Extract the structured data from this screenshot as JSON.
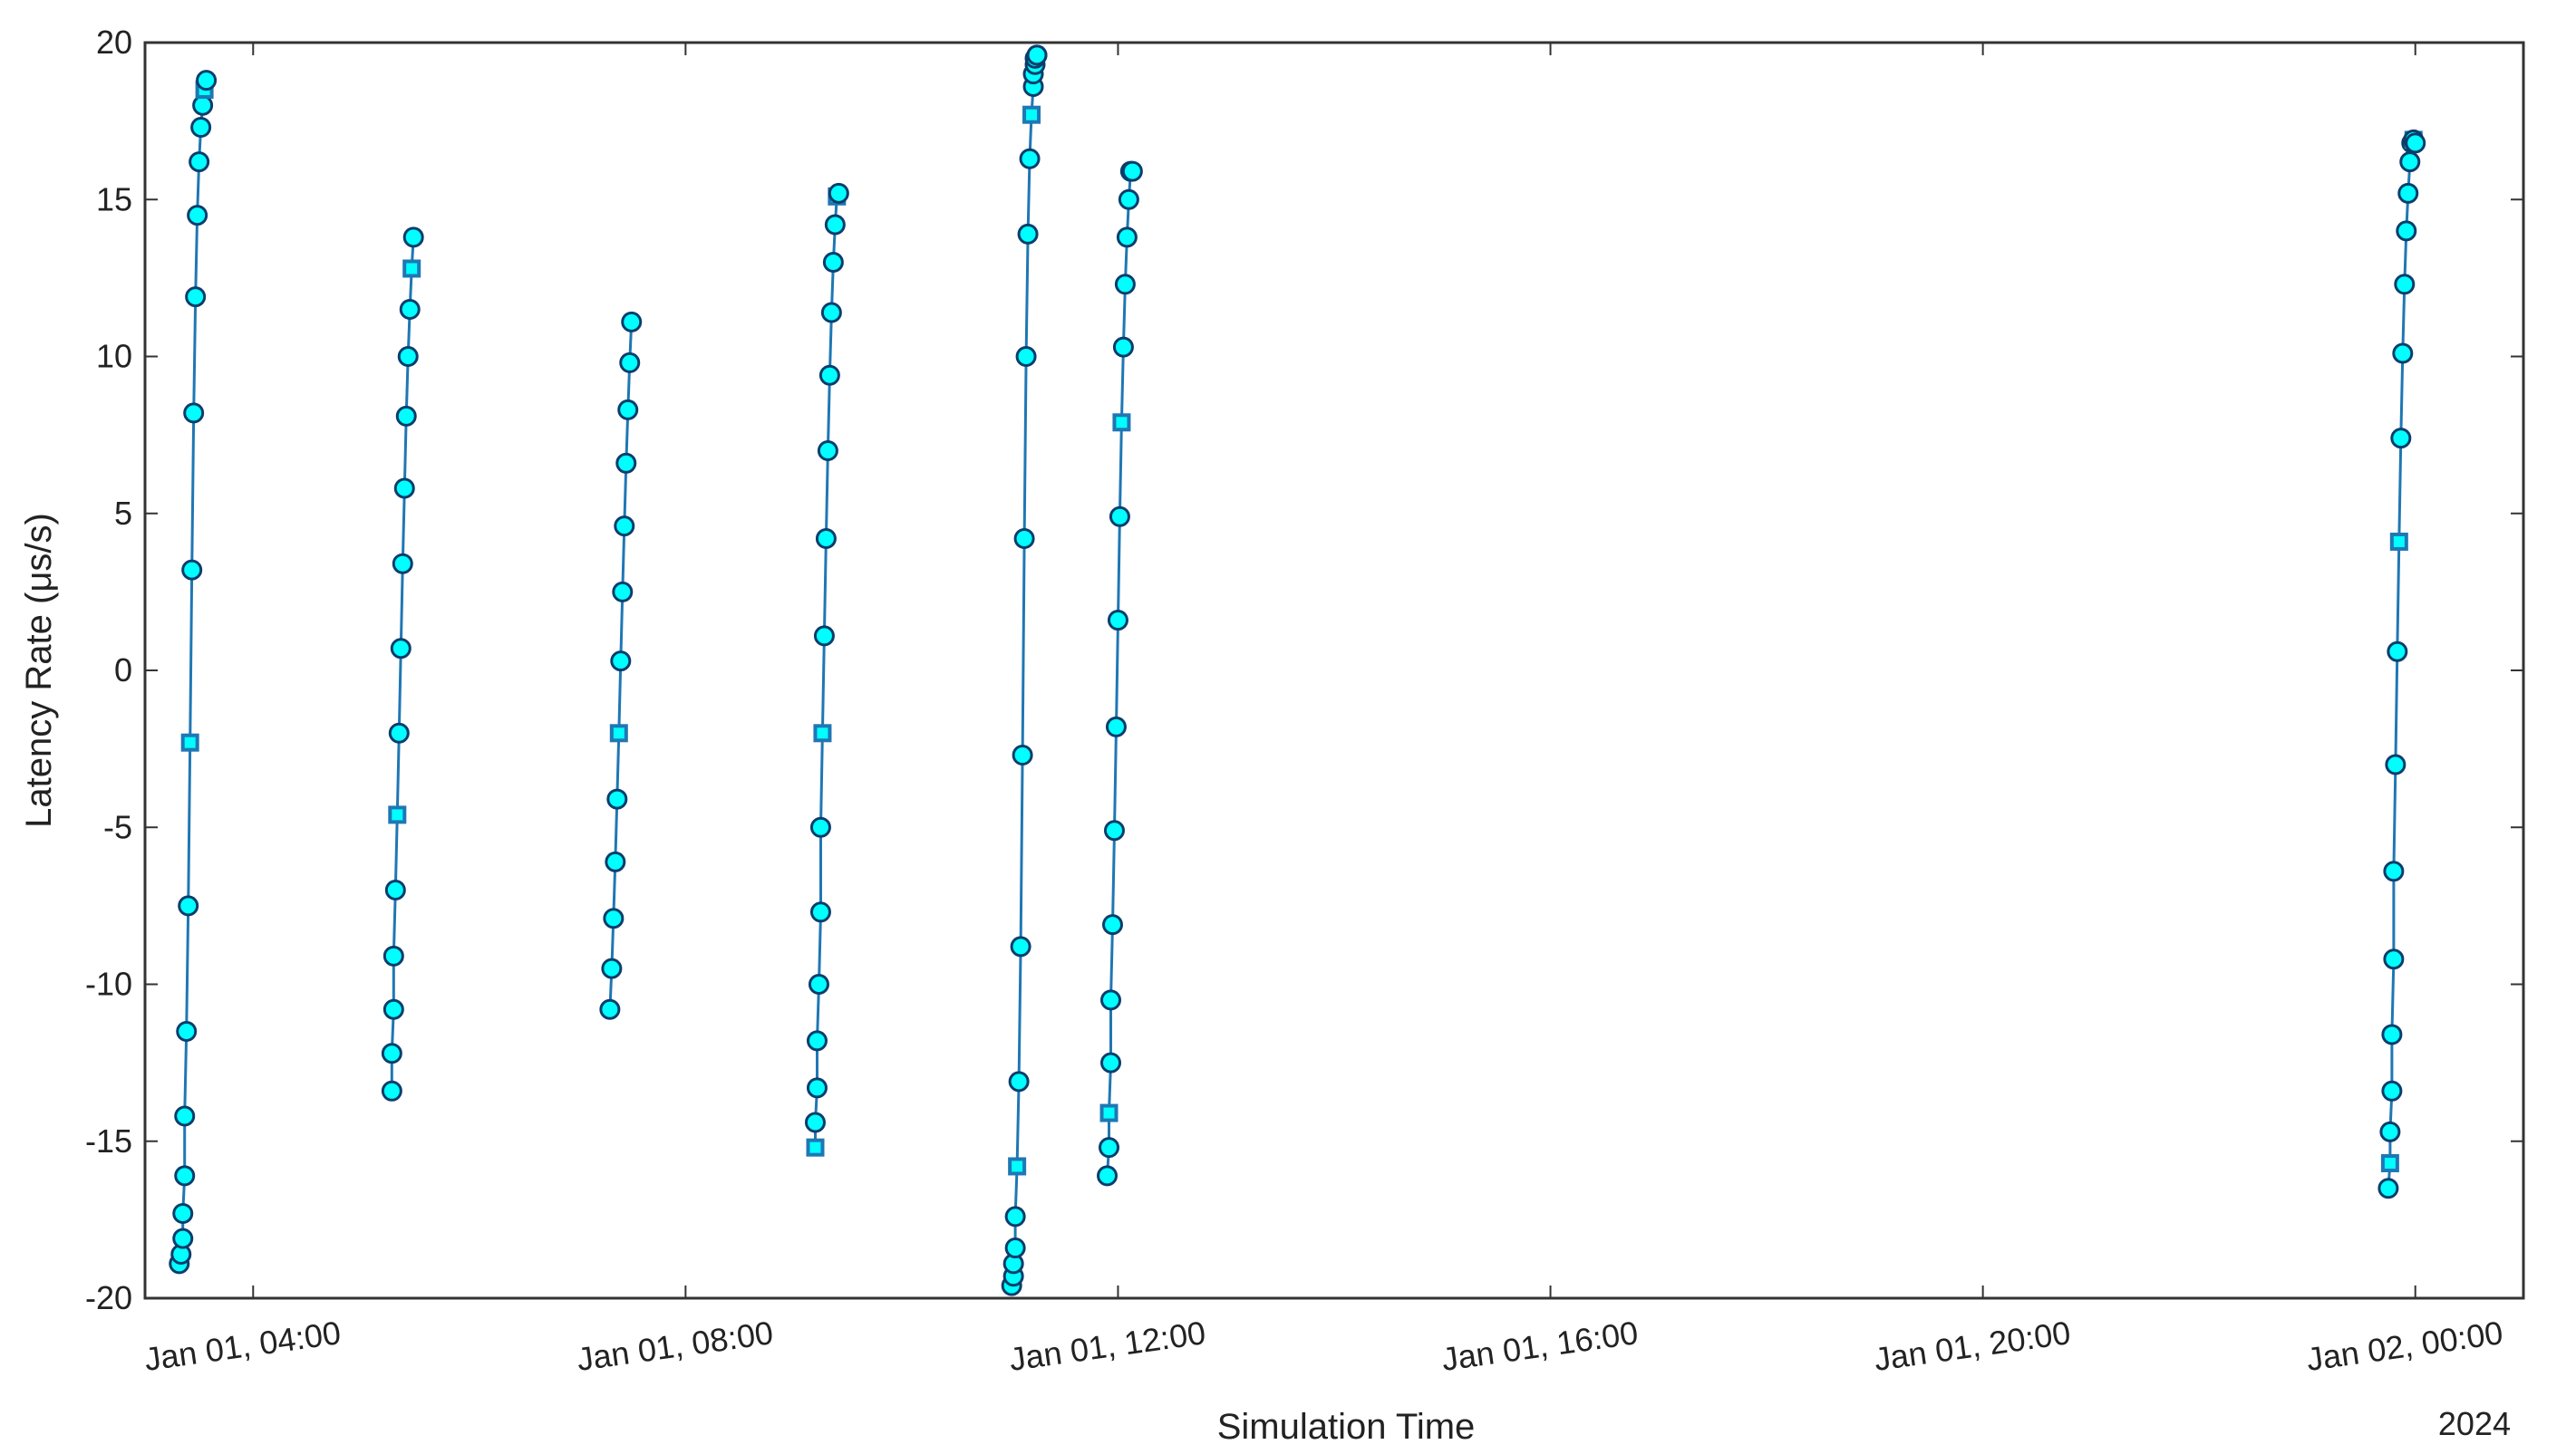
{
  "chart_data": {
    "type": "line",
    "xlabel": "Simulation Time",
    "ylabel": "Latency Rate (μs/s)",
    "year_label": "2024",
    "xlim": [
      "2024-01-01T03:00",
      "2024-01-02T01:00"
    ],
    "ylim": [
      -20,
      20
    ],
    "x_ticks": [
      "2024-01-01T04:00",
      "2024-01-01T08:00",
      "2024-01-01T12:00",
      "2024-01-01T16:00",
      "2024-01-01T20:00",
      "2024-01-02T00:00"
    ],
    "x_tick_labels": [
      "Jan 01, 04:00",
      "Jan 01, 08:00",
      "Jan 01, 12:00",
      "Jan 01, 16:00",
      "Jan 01, 20:00",
      "Jan 02, 00:00"
    ],
    "y_ticks": [
      20,
      15,
      10,
      5,
      0,
      -5,
      -10,
      -15,
      -20
    ],
    "y_tick_labels": [
      "20",
      "15",
      "10",
      "5",
      "0",
      "-5",
      "-10",
      "-15",
      "-20"
    ],
    "grid": false,
    "colors": {
      "line": "#1f77b4",
      "marker_fill": "#00ffff",
      "marker_edge": "#0b3d6b",
      "axis": "#333333"
    },
    "series": [
      {
        "x": [
          "2024-01-01T03:19",
          "2024-01-01T03:20",
          "2024-01-01T03:21",
          "2024-01-01T03:21",
          "2024-01-01T03:22",
          "2024-01-01T03:22",
          "2024-01-01T03:23",
          "2024-01-01T03:24",
          "2024-01-01T03:25",
          "2024-01-01T03:26",
          "2024-01-01T03:27",
          "2024-01-01T03:28",
          "2024-01-01T03:29",
          "2024-01-01T03:30",
          "2024-01-01T03:31",
          "2024-01-01T03:32",
          "2024-01-01T03:33",
          "2024-01-01T03:34"
        ],
        "y": [
          -18.9,
          -18.6,
          -18.1,
          -17.3,
          -16.1,
          -14.2,
          -11.5,
          -7.5,
          -2.3,
          3.2,
          8.2,
          11.9,
          14.5,
          16.2,
          17.3,
          18.0,
          18.5,
          18.8
        ]
      },
      {
        "x": [
          "2024-01-01T05:17",
          "2024-01-01T05:17",
          "2024-01-01T05:18",
          "2024-01-01T05:18",
          "2024-01-01T05:19",
          "2024-01-01T05:20",
          "2024-01-01T05:21",
          "2024-01-01T05:22",
          "2024-01-01T05:23",
          "2024-01-01T05:24",
          "2024-01-01T05:25",
          "2024-01-01T05:26",
          "2024-01-01T05:27",
          "2024-01-01T05:28",
          "2024-01-01T05:29"
        ],
        "y": [
          -13.4,
          -12.2,
          -10.8,
          -9.1,
          -7.0,
          -4.6,
          -2.0,
          0.7,
          3.4,
          5.8,
          8.1,
          10.0,
          11.5,
          12.8,
          13.8
        ]
      },
      {
        "x": [
          "2024-01-01T07:18",
          "2024-01-01T07:19",
          "2024-01-01T07:20",
          "2024-01-01T07:21",
          "2024-01-01T07:22",
          "2024-01-01T07:23",
          "2024-01-01T07:24",
          "2024-01-01T07:25",
          "2024-01-01T07:26",
          "2024-01-01T07:27",
          "2024-01-01T07:28",
          "2024-01-01T07:29",
          "2024-01-01T07:30"
        ],
        "y": [
          -10.8,
          -9.5,
          -7.9,
          -6.1,
          -4.1,
          -2.0,
          0.3,
          2.5,
          4.6,
          6.6,
          8.3,
          9.8,
          11.1
        ]
      },
      {
        "x": [
          "2024-01-01T09:12",
          "2024-01-01T09:12",
          "2024-01-01T09:13",
          "2024-01-01T09:13",
          "2024-01-01T09:14",
          "2024-01-01T09:15",
          "2024-01-01T09:15",
          "2024-01-01T09:16",
          "2024-01-01T09:17",
          "2024-01-01T09:18",
          "2024-01-01T09:19",
          "2024-01-01T09:20",
          "2024-01-01T09:21",
          "2024-01-01T09:22",
          "2024-01-01T09:23",
          "2024-01-01T09:24",
          "2024-01-01T09:25"
        ],
        "y": [
          -15.2,
          -14.4,
          -13.3,
          -11.8,
          -10.0,
          -7.7,
          -5.0,
          -2.0,
          1.1,
          4.2,
          7.0,
          9.4,
          11.4,
          13.0,
          14.2,
          15.1,
          15.2
        ]
      },
      {
        "x": [
          "2024-01-01T11:01",
          "2024-01-01T11:02",
          "2024-01-01T11:02",
          "2024-01-01T11:03",
          "2024-01-01T11:03",
          "2024-01-01T11:04",
          "2024-01-01T11:05",
          "2024-01-01T11:06",
          "2024-01-01T11:07",
          "2024-01-01T11:08",
          "2024-01-01T11:09",
          "2024-01-01T11:10",
          "2024-01-01T11:11",
          "2024-01-01T11:12",
          "2024-01-01T11:13",
          "2024-01-01T11:13",
          "2024-01-01T11:14",
          "2024-01-01T11:14",
          "2024-01-01T11:15",
          "2024-01-01T11:15"
        ],
        "y": [
          -19.6,
          -19.3,
          -18.9,
          -18.4,
          -17.4,
          -15.8,
          -13.1,
          -8.8,
          -2.7,
          4.2,
          10.0,
          13.9,
          16.3,
          17.7,
          18.6,
          19.0,
          19.3,
          19.5,
          19.6,
          19.6
        ]
      },
      {
        "x": [
          "2024-01-01T11:54",
          "2024-01-01T11:55",
          "2024-01-01T11:55",
          "2024-01-01T11:56",
          "2024-01-01T11:56",
          "2024-01-01T11:57",
          "2024-01-01T11:58",
          "2024-01-01T11:59",
          "2024-01-01T12:00",
          "2024-01-01T12:01",
          "2024-01-01T12:02",
          "2024-01-01T12:03",
          "2024-01-01T12:04",
          "2024-01-01T12:05",
          "2024-01-01T12:06",
          "2024-01-01T12:07",
          "2024-01-01T12:08"
        ],
        "y": [
          -16.1,
          -15.2,
          -14.1,
          -12.5,
          -10.5,
          -8.1,
          -5.1,
          -1.8,
          1.6,
          4.9,
          7.9,
          10.3,
          12.3,
          13.8,
          15.0,
          15.9,
          15.9
        ]
      },
      {
        "x": [
          "2024-01-01T23:45",
          "2024-01-01T23:46",
          "2024-01-01T23:46",
          "2024-01-01T23:47",
          "2024-01-01T23:47",
          "2024-01-01T23:48",
          "2024-01-01T23:48",
          "2024-01-01T23:49",
          "2024-01-01T23:50",
          "2024-01-01T23:51",
          "2024-01-01T23:52",
          "2024-01-01T23:53",
          "2024-01-01T23:54",
          "2024-01-01T23:55",
          "2024-01-01T23:56",
          "2024-01-01T23:57",
          "2024-01-01T23:58",
          "2024-01-01T23:59",
          "2024-01-01T23:59",
          "2024-01-02T00:00"
        ],
        "y": [
          -16.5,
          -15.7,
          -14.7,
          -13.4,
          -11.6,
          -9.2,
          -6.4,
          -3.0,
          0.6,
          4.1,
          7.4,
          10.1,
          12.3,
          14.0,
          15.2,
          16.2,
          16.8,
          16.9,
          16.9,
          16.8
        ]
      }
    ],
    "square_markers": [
      {
        "series": 0,
        "index": 8
      },
      {
        "series": 0,
        "index": 16
      },
      {
        "series": 1,
        "index": 5
      },
      {
        "series": 1,
        "index": 13
      },
      {
        "series": 2,
        "index": 5
      },
      {
        "series": 3,
        "index": 0
      },
      {
        "series": 3,
        "index": 7
      },
      {
        "series": 3,
        "index": 15
      },
      {
        "series": 4,
        "index": 5
      },
      {
        "series": 4,
        "index": 13
      },
      {
        "series": 5,
        "index": 2
      },
      {
        "series": 5,
        "index": 10
      },
      {
        "series": 6,
        "index": 1
      },
      {
        "series": 6,
        "index": 9
      },
      {
        "series": 6,
        "index": 17
      }
    ]
  }
}
